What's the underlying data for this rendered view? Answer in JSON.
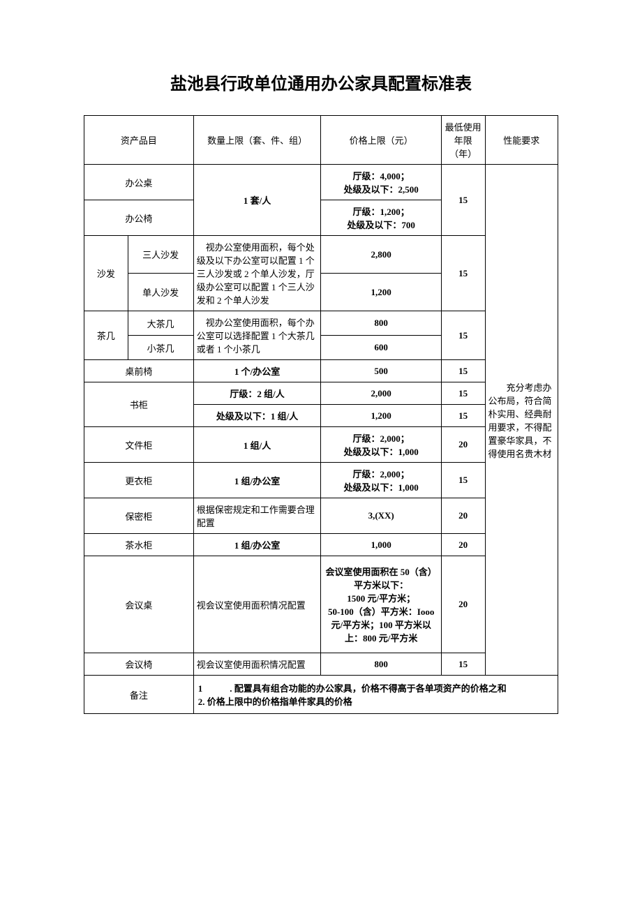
{
  "title": "盐池县行政单位通用办公家具配置标准表",
  "headers": {
    "asset": "资产品目",
    "qty": "数量上限（套、件、组）",
    "price": "价格上限（元）",
    "years": "最低使用年限（年）",
    "req": "性能要求"
  },
  "requirement_text": "　　充分考虑办公布局，符合简朴实用、经典耐用要求，不得配置豪华家具，不得使用名贵木材",
  "rows": {
    "desk": {
      "name": "办公桌",
      "qty": "1 套/人",
      "price": "厅级：4,000；\n处级及以下：2,500",
      "years": "15"
    },
    "chair": {
      "name": "办公椅",
      "price": "厅级：1,200；\n处级及以下：700"
    },
    "sofa": {
      "name": "沙发",
      "sub1": "三人沙发",
      "sub2": "单人沙发",
      "qty": "　视办公室使用面积，每个处级及以下办公室可以配置 1 个三人沙发或 2 个单人沙发，厅级办公室可以配置 1 个三人沙发和 2 个单人沙发",
      "price1": "2,800",
      "price2": "1,200",
      "years": "15"
    },
    "tea": {
      "name": "茶几",
      "sub1": "大茶几",
      "sub2": "小茶几",
      "qty": "　视办公室使用面积，每个办公室可以选择配置 1 个大茶几或者 1 个小茶几",
      "price1": "800",
      "price2": "600",
      "years": "15"
    },
    "front_chair": {
      "name": "桌前椅",
      "qty": "1 个/办公室",
      "price": "500",
      "years": "15"
    },
    "bookcase": {
      "name": "书柜",
      "qty1": "厅级：2 组/人",
      "qty2": "处级及以下：1 组/人",
      "price1": "2,000",
      "price2": "1,200",
      "years1": "15",
      "years2": "15"
    },
    "filecab": {
      "name": "文件柜",
      "qty": "1 组/人",
      "price": "厅级：2,000；\n处级及以下：1,000",
      "years": "20"
    },
    "wardrobe": {
      "name": "更衣柜",
      "qty": "1 组/办公室",
      "price": "厅级：2,000；\n处级及以下：1,000",
      "years": "15"
    },
    "safe": {
      "name": "保密柜",
      "qty": "根据保密规定和工作需要合理配置",
      "price": "3,(XX)",
      "years": "20"
    },
    "teacab": {
      "name": "茶水柜",
      "qty": "1 组/办公室",
      "price": "1,000",
      "years": "20"
    },
    "conftable": {
      "name": "会议桌",
      "qty": "视会议室使用面积情况配置",
      "price": "会议室使用面积在 50（含）平方米以下：\n1500 元/平方米；\n50-100（含）平方米：Iooo 元/平方米；100 平方米以上：800 元/平方米",
      "years": "20"
    },
    "confchair": {
      "name": "会议椅",
      "qty": "视会议室使用面积情况配置",
      "price": "800",
      "years": "15"
    }
  },
  "footer": {
    "label": "备注",
    "line1": "1　　　. 配置具有组合功能的办公家具，价格不得高于各单项资产的价格之和",
    "line2": "2. 价格上限中的价格指单件家具的价格"
  },
  "colors": {
    "text": "#000000",
    "border": "#000000",
    "background": "#ffffff"
  },
  "typography": {
    "title_fontsize": 24,
    "body_fontsize": 13,
    "font_family": "SimSun"
  }
}
